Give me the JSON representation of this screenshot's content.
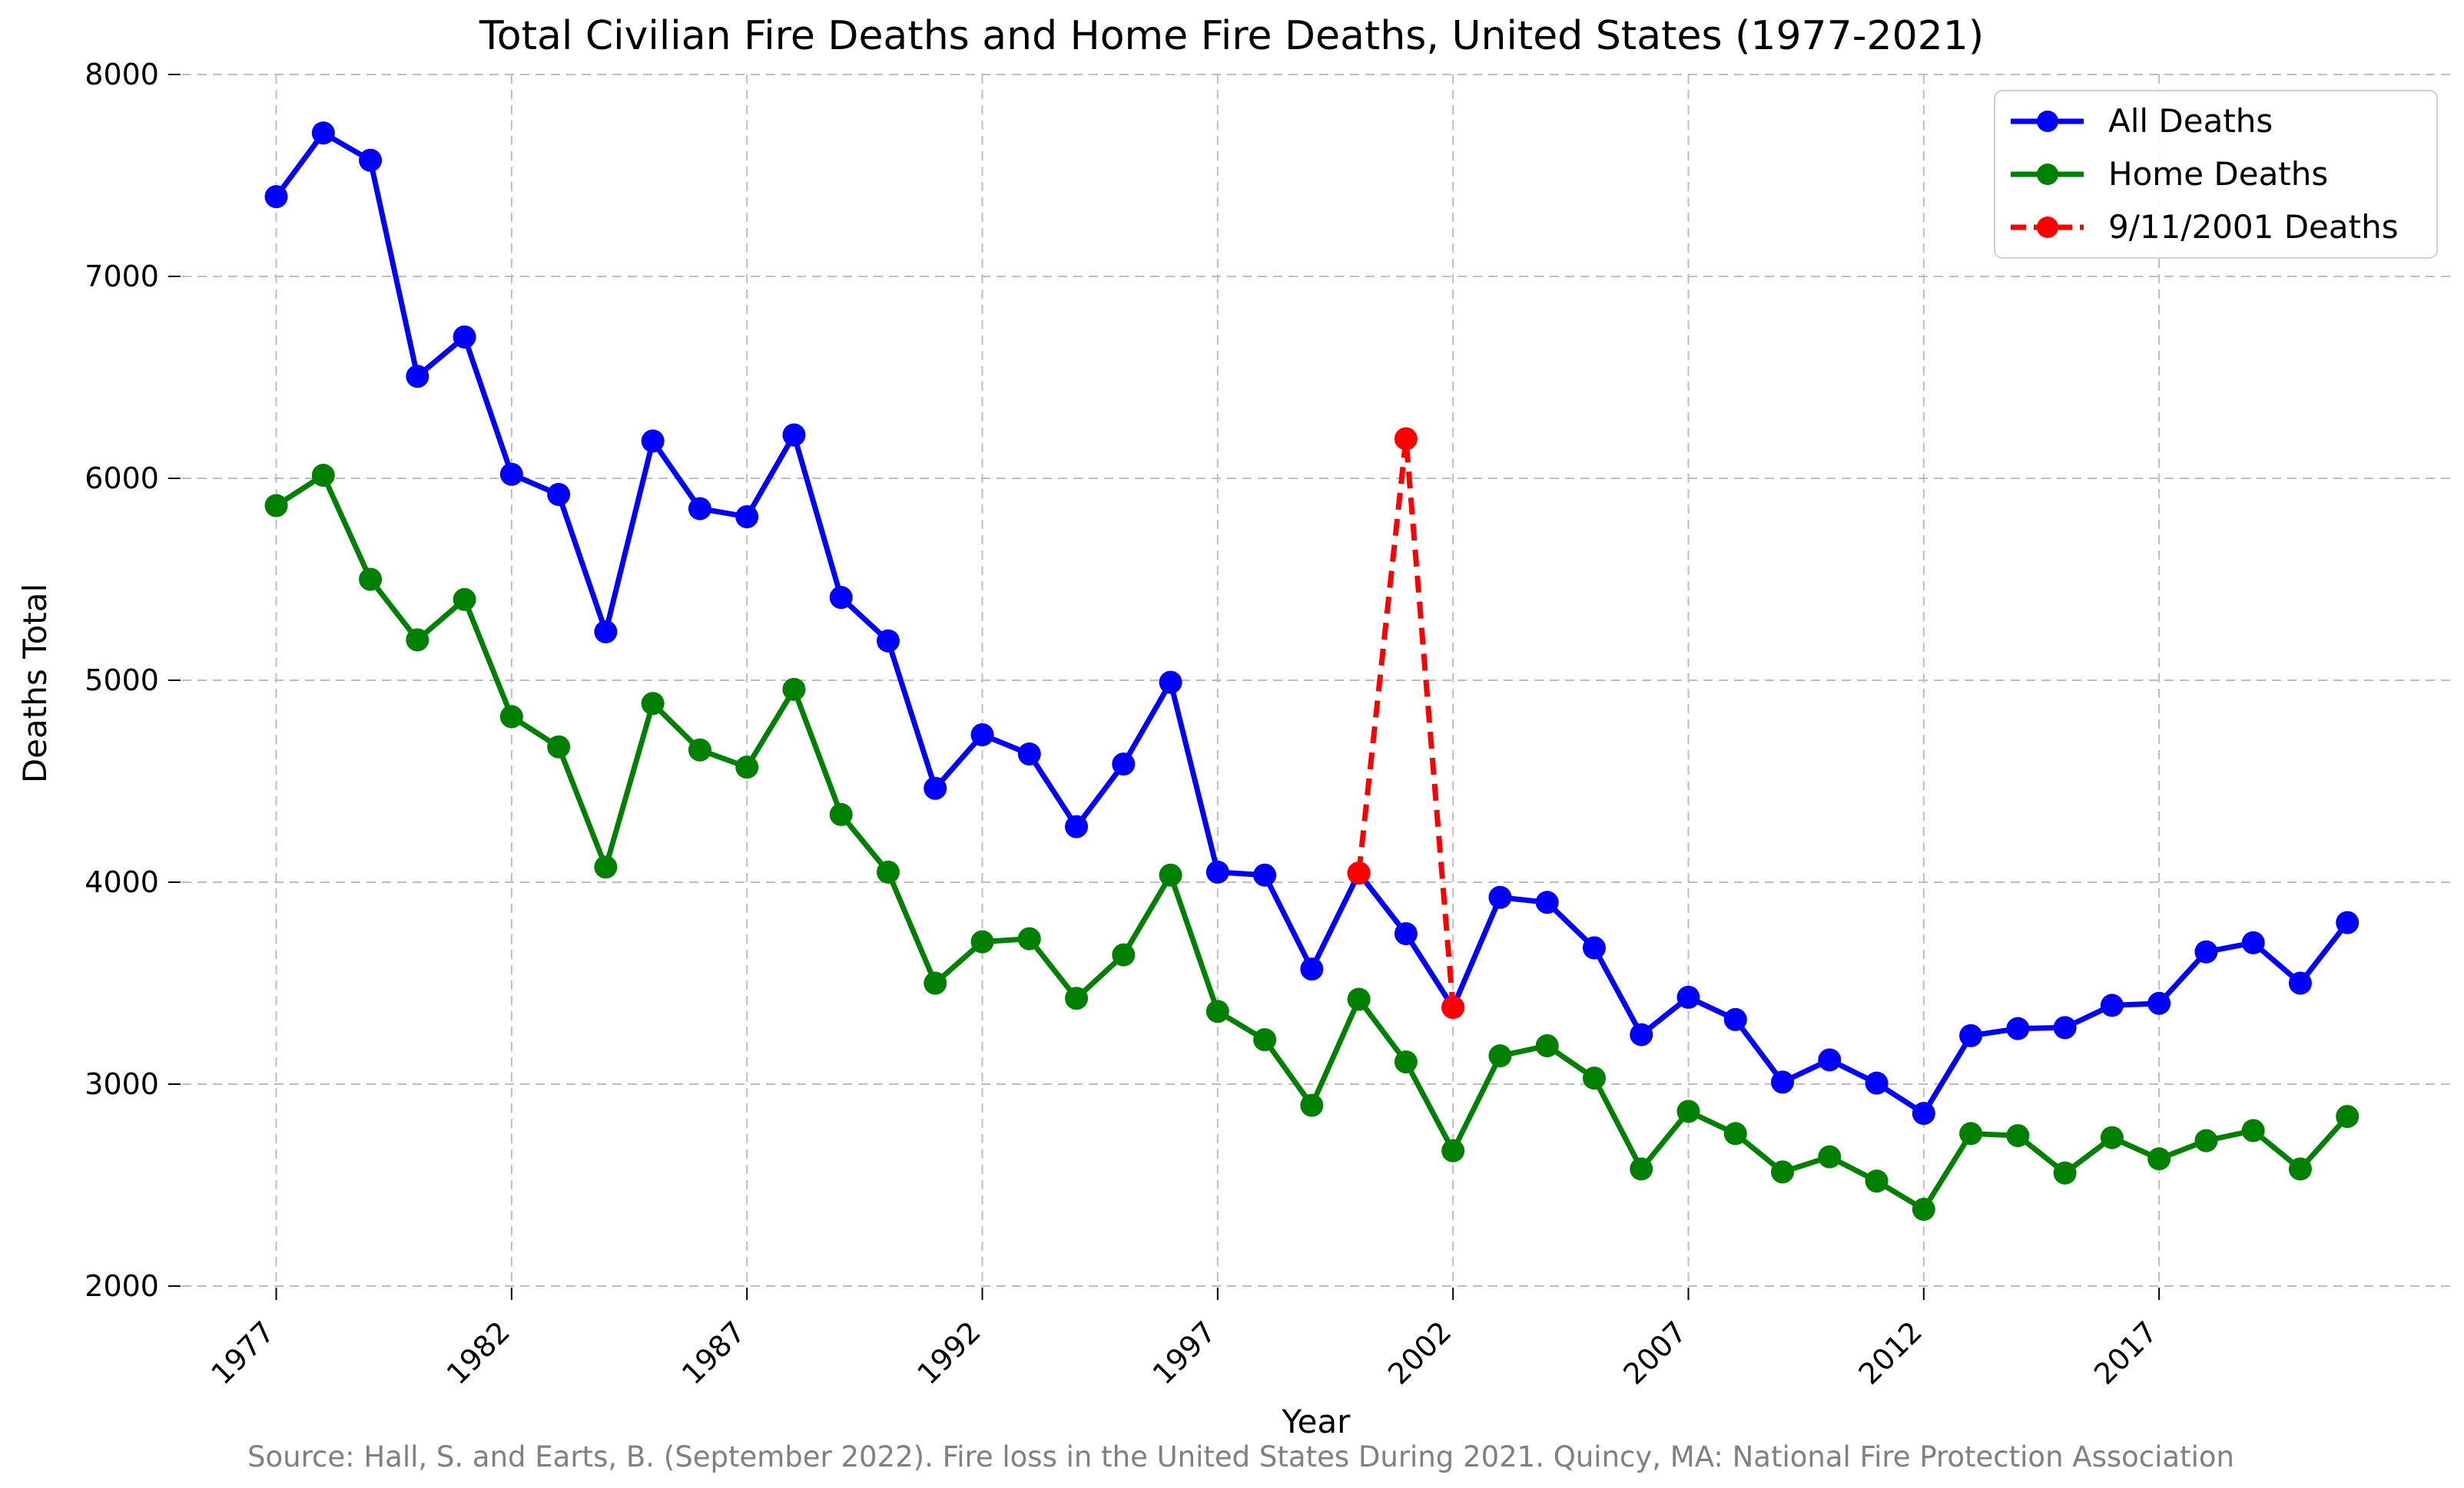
{
  "chart_data": {
    "type": "line",
    "title": "Total Civilian Fire Deaths and Home Fire Deaths, United States (1977-2021)",
    "xlabel": "Year",
    "ylabel": "Deaths Total",
    "source": "Source: Hall, S. and Earts, B. (September 2022). Fire loss in the United States During 2021. Quincy, MA: National Fire Protection Association",
    "xlim": [
      1975.0,
      2023.2
    ],
    "ylim": [
      2000,
      8000
    ],
    "x_ticks": [
      1977,
      1982,
      1987,
      1992,
      1997,
      2002,
      2007,
      2012,
      2017
    ],
    "x_tick_labels": [
      "1977",
      "1982",
      "1987",
      "1992",
      "1997",
      "2002",
      "2007",
      "2012",
      "2017"
    ],
    "y_ticks": [
      2000,
      3000,
      4000,
      5000,
      6000,
      7000,
      8000
    ],
    "y_tick_labels": [
      "2000",
      "3000",
      "4000",
      "5000",
      "6000",
      "7000",
      "8000"
    ],
    "grid": true,
    "legend_position": "top-right",
    "x": [
      1977,
      1978,
      1979,
      1980,
      1981,
      1982,
      1983,
      1984,
      1985,
      1986,
      1987,
      1988,
      1989,
      1990,
      1991,
      1992,
      1993,
      1994,
      1995,
      1996,
      1997,
      1998,
      1999,
      2000,
      2001,
      2002,
      2003,
      2004,
      2005,
      2006,
      2007,
      2008,
      2009,
      2010,
      2011,
      2012,
      2013,
      2014,
      2015,
      2016,
      2017,
      2018,
      2019,
      2020,
      2021
    ],
    "series": [
      {
        "name": "All Deaths",
        "color": "#0000ff",
        "dashed": false,
        "values": [
          7395,
          7710,
          7575,
          6505,
          6700,
          6020,
          5920,
          5240,
          6185,
          5850,
          5810,
          6215,
          5410,
          5195,
          4465,
          4730,
          4635,
          4275,
          4585,
          4990,
          4050,
          4035,
          3570,
          4045,
          3745,
          3380,
          3925,
          3900,
          3675,
          3245,
          3430,
          3320,
          3010,
          3120,
          3005,
          2855,
          3240,
          3275,
          3280,
          3390,
          3400,
          3655,
          3700,
          3500,
          3800
        ]
      },
      {
        "name": "Home Deaths",
        "color": "#008000",
        "dashed": false,
        "values": [
          5865,
          6015,
          5500,
          5200,
          5400,
          4820,
          4670,
          4075,
          4885,
          4655,
          4570,
          4955,
          4335,
          4050,
          3500,
          3705,
          3720,
          3425,
          3640,
          4035,
          3360,
          3220,
          2895,
          3420,
          3110,
          2670,
          3140,
          3190,
          3030,
          2580,
          2865,
          2755,
          2565,
          2640,
          2520,
          2380,
          2755,
          2745,
          2560,
          2735,
          2630,
          2720,
          2770,
          2580,
          2840
        ]
      },
      {
        "name": "9/11/2001 Deaths",
        "color": "#ff0000",
        "dashed": true,
        "x": [
          2000,
          2001,
          2002
        ],
        "values": [
          4045,
          6196,
          3380
        ]
      }
    ]
  }
}
